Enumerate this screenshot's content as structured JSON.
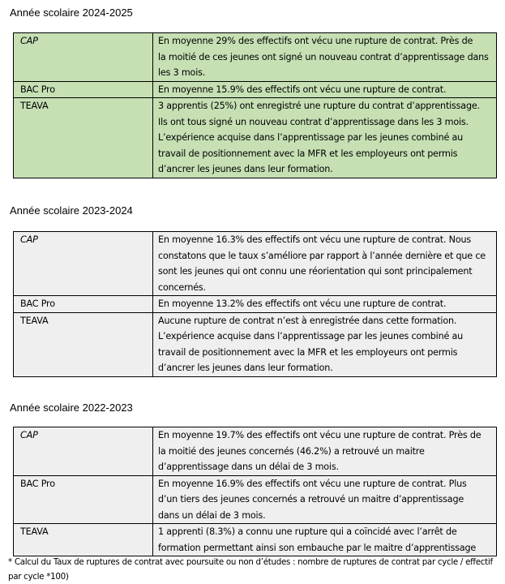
{
  "sections": [
    {
      "title": "Année scolaire 2024-2025",
      "bg": "#c6e0b4",
      "rows": [
        {
          "label": "CAP",
          "lines": [
            "En moyenne 29% des effectifs ont vécu une rupture de contrat. Près de",
            "la moitié de ces jeunes ont signé un nouveau contrat d’apprentissage dans",
            "les 3 mois."
          ]
        },
        {
          "label": "BAC Pro",
          "lines": [
            "En moyenne 15.9% des effectifs ont vécu une rupture de contrat."
          ]
        },
        {
          "label": "TEAVA",
          "lines": [
            "3 apprentis (25%) ont enregistré une rupture du contrat d’apprentissage.",
            "Ils ont tous signé un nouveau contrat d’apprentissage dans les 3 mois.",
            "L’expérience acquise dans l’apprentissage par les jeunes combiné au",
            "travail de positionnement avec la MFR et les employeurs ont permis",
            "d’ancrer les jeunes dans leur formation."
          ]
        }
      ]
    },
    {
      "title": "Année scolaire 2023-2024",
      "bg": "#efefef",
      "rows": [
        {
          "label": "CAP",
          "lines": [
            "En moyenne 16.3% des effectifs ont vécu une rupture de contrat. Nous",
            "constatons que le taux s’améliore par rapport à l’année dernière et que ce",
            "sont les jeunes qui ont connu une réorientation qui sont principalement",
            "concernés."
          ]
        },
        {
          "label": "BAC Pro",
          "lines": [
            "En moyenne 13.2% des effectifs ont vécu une rupture de contrat."
          ]
        },
        {
          "label": "TEAVA",
          "lines": [
            "Aucune rupture de contrat n’est à enregistrée dans cette formation.",
            "L’expérience acquise dans l’apprentissage par les jeunes combiné au",
            "travail de positionnement avec la MFR et les employeurs ont permis",
            "d’ancrer les jeunes dans leur formation."
          ]
        }
      ]
    },
    {
      "title": "Année scolaire 2022-2023",
      "bg": "#efefef",
      "rows": [
        {
          "label": "CAP",
          "lines": [
            "En moyenne 19.7% des effectifs ont vécu une rupture de contrat. Près de",
            "la moitié des jeunes concernés (46.2%) a retrouvé un maitre",
            "d’apprentissage dans un délai de 3 mois."
          ]
        },
        {
          "label": "BAC Pro",
          "lines": [
            "En moyenne 16.9% des effectifs ont vécu une rupture de contrat. Plus",
            "d’un tiers des jeunes concernés a retrouvé un maitre d’apprentissage",
            "dans un délai de 3 mois."
          ]
        },
        {
          "label": "TEAVA",
          "lines": [
            "1 apprenti (8.3%) a connu une rupture qui a coïncidé avec l’arrêt de",
            "formation permettant ainsi son embauche par le maitre d’apprentissage"
          ]
        }
      ]
    }
  ],
  "footnote": [
    "* Calcul du Taux de ruptures de contrat avec poursuite ou non d’études : nombre de ruptures de contrat par cycle / effectif",
    "par cycle *100)"
  ]
}
